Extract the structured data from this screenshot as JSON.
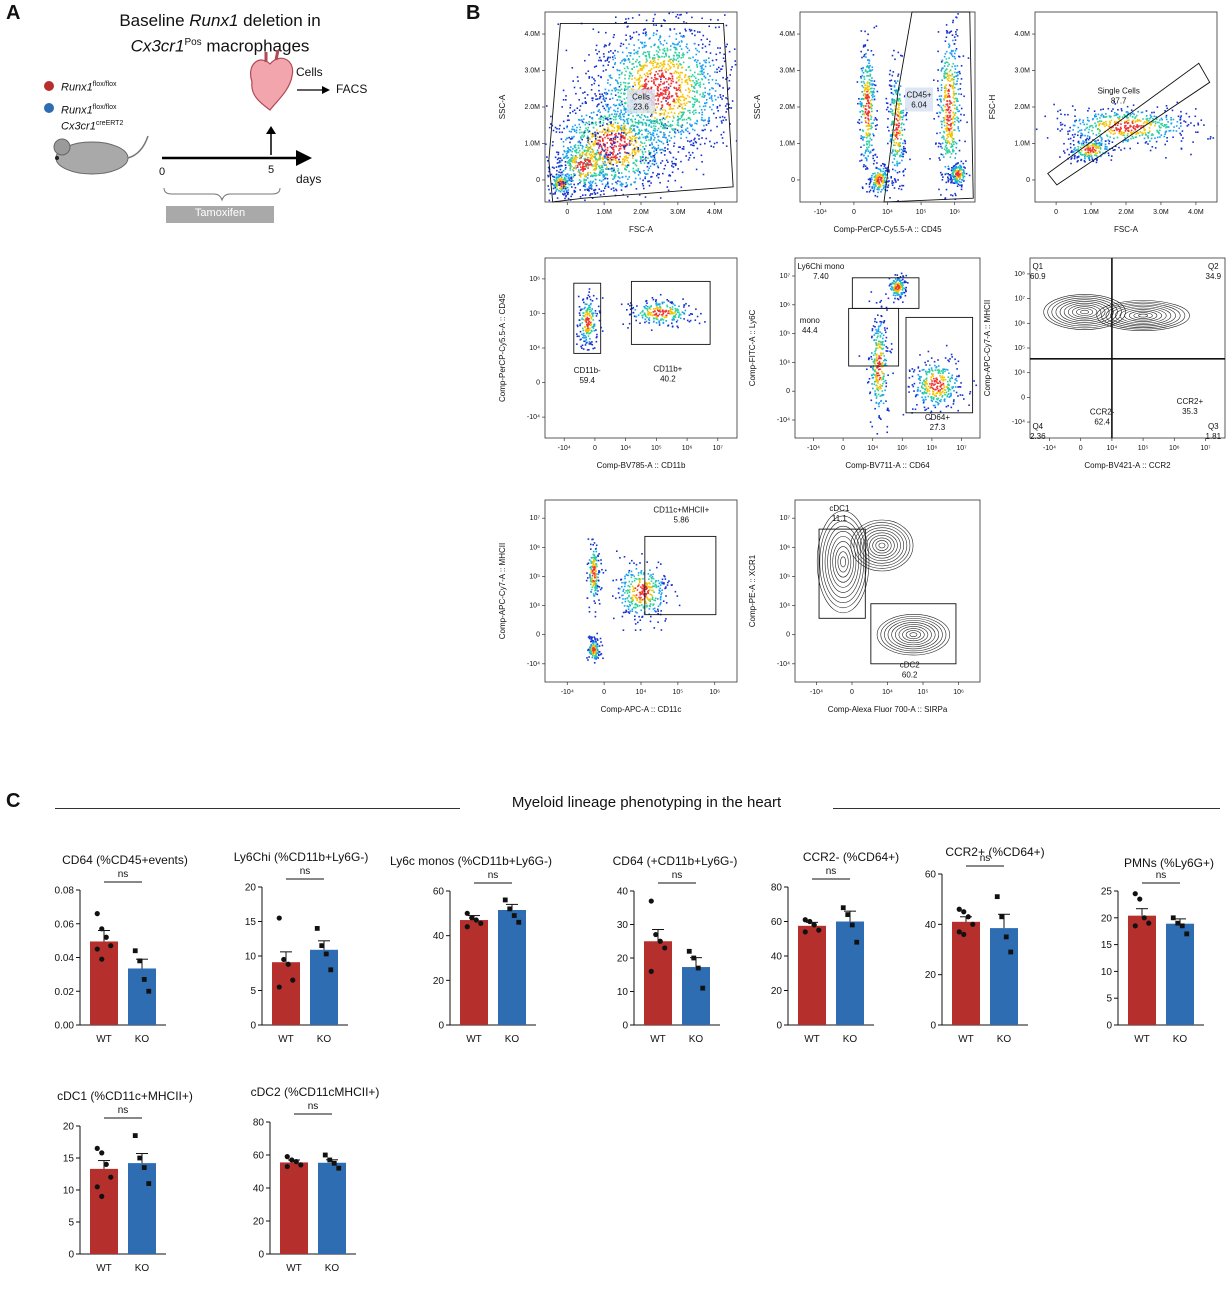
{
  "panels": {
    "a": "A",
    "b": "B",
    "c": "C"
  },
  "schematic": {
    "title_pre": "Baseline ",
    "title_gene": "Runx1",
    "title_post": " deletion in",
    "title2_gene": "Cx3cr1",
    "title2_sup": "Pos",
    "title2_post": " macrophages",
    "legend_red_gene": "Runx1",
    "legend_red_sup": "flox/flox",
    "legend_blue_gene": "Runx1",
    "legend_blue_sup": "flox/flox",
    "legend_blue_gene2": "Cx3cr1",
    "legend_blue_sup2": "creERT2",
    "cells": "Cells",
    "facs": "FACS",
    "t0": "0",
    "t5": "5",
    "days": "days",
    "tamoxifen": "Tamoxifen",
    "colors": {
      "red": "#b5302d",
      "blue": "#2f6db3",
      "grey": "#a9a9a9"
    }
  },
  "facs": [
    {
      "id": "p1",
      "type": "density",
      "ylabel": "SSC-A",
      "xlabel": "FSC-A",
      "xticks": [
        "0",
        "1.0M",
        "2.0M",
        "3.0M",
        "4.0M"
      ],
      "yticks": [
        "0",
        "1.0M",
        "2.0M",
        "3.0M",
        "4.0M"
      ],
      "gates": [
        {
          "name": "Cells",
          "value": "23.6"
        }
      ]
    },
    {
      "id": "p2",
      "type": "density",
      "ylabel": "SSC-A",
      "xlabel": "Comp-PerCP-Cy5.5-A :: CD45",
      "xticks": [
        "-10⁴",
        "0",
        "10⁴",
        "10⁵",
        "10⁶"
      ],
      "yticks": [
        "0",
        "1.0M",
        "2.0M",
        "3.0M",
        "4.0M"
      ],
      "gates": [
        {
          "name": "CD45+",
          "value": "6.04"
        }
      ]
    },
    {
      "id": "p3",
      "type": "density",
      "ylabel": "FSC-H",
      "xlabel": "FSC-A",
      "xticks": [
        "0",
        "1.0M",
        "2.0M",
        "3.0M",
        "4.0M"
      ],
      "yticks": [
        "0",
        "1.0M",
        "2.0M",
        "3.0M",
        "4.0M"
      ],
      "gates": [
        {
          "name": "Single Cells",
          "value": "87.7"
        }
      ]
    },
    {
      "id": "p4",
      "type": "density",
      "ylabel": "Comp-PerCP-Cy5.5-A :: CD45",
      "xlabel": "Comp-BV785-A :: CD11b",
      "xticks": [
        "-10⁴",
        "0",
        "10⁴",
        "10⁵",
        "10⁶",
        "10⁷"
      ],
      "yticks": [
        "-10⁴",
        "0",
        "10⁴",
        "10⁵",
        "10⁶"
      ],
      "gates": [
        {
          "name": "CD11b-",
          "value": "59.4"
        },
        {
          "name": "CD11b+",
          "value": "40.2"
        }
      ]
    },
    {
      "id": "p5",
      "type": "density",
      "ylabel": "Comp-FITC-A :: Ly6C",
      "xlabel": "Comp-BV711-A :: CD64",
      "xticks": [
        "-10⁴",
        "0",
        "10⁴",
        "10⁵",
        "10⁶",
        "10⁷"
      ],
      "yticks": [
        "-10⁴",
        "0",
        "10⁴",
        "10⁵",
        "10⁶",
        "10⁷"
      ],
      "gates": [
        {
          "name": "Ly6Chi mono",
          "value": "7.40"
        },
        {
          "name": "mono",
          "value": "44.4"
        },
        {
          "name": "CD64+",
          "value": "27.3"
        }
      ]
    },
    {
      "id": "p6",
      "type": "contour",
      "ylabel": "Comp-APC-Cy7-A :: MHCII",
      "xlabel": "Comp-BV421-A :: CCR2",
      "xticks": [
        "-10⁴",
        "0",
        "10⁴",
        "10⁵",
        "10⁶",
        "10⁷"
      ],
      "yticks": [
        "-10⁴",
        "0",
        "10⁴",
        "10⁵",
        "10⁶",
        "10⁷",
        "10⁸"
      ],
      "gates": [
        {
          "name": "Q1",
          "value": "60.9"
        },
        {
          "name": "Q2",
          "value": "34.9"
        },
        {
          "name": "Q3",
          "value": "1.81"
        },
        {
          "name": "Q4",
          "value": "2.36"
        },
        {
          "name": "CCR2-",
          "value": "62.4"
        },
        {
          "name": "CCR2+",
          "value": "35.3"
        }
      ]
    },
    {
      "id": "p7",
      "type": "density",
      "ylabel": "Comp-APC-Cy7-A :: MHCII",
      "xlabel": "Comp-APC-A :: CD11c",
      "xticks": [
        "-10⁴",
        "0",
        "10⁴",
        "10⁵",
        "10⁶"
      ],
      "yticks": [
        "-10⁴",
        "0",
        "10⁴",
        "10⁵",
        "10⁶",
        "10⁷"
      ],
      "gates": [
        {
          "name": "CD11c+MHCII+",
          "value": "5.86"
        }
      ]
    },
    {
      "id": "p8",
      "type": "contour",
      "ylabel": "Comp-PE-A :: XCR1",
      "xlabel": "Comp-Alexa Fluor 700-A :: SIRPa",
      "xticks": [
        "-10⁴",
        "0",
        "10⁴",
        "10⁵",
        "10⁶"
      ],
      "yticks": [
        "-10⁴",
        "0",
        "10⁴",
        "10⁵",
        "10⁶",
        "10⁷"
      ],
      "gates": [
        {
          "name": "cDC1",
          "value": "11.1"
        },
        {
          "name": "cDC2",
          "value": "60.2"
        }
      ]
    }
  ],
  "section_c_title": "Myeloid lineage phenotyping in the heart",
  "chart_data": [
    {
      "type": "bar",
      "title": "CD64 (%CD45+events)",
      "categories": [
        "WT",
        "KO"
      ],
      "values": [
        0.0495,
        0.0335
      ],
      "sem": [
        0.0065,
        0.0055
      ],
      "ylim": [
        0,
        0.08
      ],
      "yticks": [
        "0.00",
        "0.02",
        "0.04",
        "0.06",
        "0.08"
      ],
      "tickvals": [
        0,
        0.02,
        0.04,
        0.06,
        0.08
      ],
      "points": [
        [
          0.066,
          0.057,
          0.052,
          0.047,
          0.045,
          0.039
        ],
        [
          0.044,
          0.038,
          0.027,
          0.02
        ]
      ],
      "sig": "ns"
    },
    {
      "type": "bar",
      "title": "Ly6Chi (%CD11b+Ly6G-)",
      "categories": [
        "WT",
        "KO"
      ],
      "values": [
        9.1,
        10.9
      ],
      "sem": [
        1.5,
        1.3
      ],
      "ylim": [
        0,
        20
      ],
      "yticks": [
        "0",
        "5",
        "10",
        "15",
        "20"
      ],
      "tickvals": [
        0,
        5,
        10,
        15,
        20
      ],
      "points": [
        [
          15.5,
          9.5,
          8.8,
          6.5,
          5.5
        ],
        [
          14.0,
          11.5,
          10.3,
          8.0
        ]
      ],
      "sig": "ns"
    },
    {
      "type": "bar",
      "title": "Ly6c monos (%CD11b+Ly6G-)",
      "categories": [
        "WT",
        "KO"
      ],
      "values": [
        47,
        51.5
      ],
      "sem": [
        2,
        2.5
      ],
      "ylim": [
        0,
        60
      ],
      "yticks": [
        "0",
        "20",
        "40",
        "60"
      ],
      "tickvals": [
        0,
        20,
        40,
        60
      ],
      "points": [
        [
          50,
          48,
          47,
          45.5,
          44
        ],
        [
          56,
          52,
          49,
          46
        ]
      ],
      "sig": "ns"
    },
    {
      "type": "bar",
      "title": "CD64 (+CD11b+Ly6G-)",
      "categories": [
        "WT",
        "KO"
      ],
      "values": [
        25,
        17.3
      ],
      "sem": [
        3.5,
        2.8
      ],
      "ylim": [
        0,
        40
      ],
      "yticks": [
        "0",
        "10",
        "20",
        "30",
        "40"
      ],
      "tickvals": [
        0,
        10,
        20,
        30,
        40
      ],
      "points": [
        [
          37,
          27,
          25,
          23,
          16
        ],
        [
          22,
          20,
          17,
          11
        ]
      ],
      "sig": "ns"
    },
    {
      "type": "bar",
      "title": "CCR2- (%CD64+)",
      "categories": [
        "WT",
        "KO"
      ],
      "values": [
        57.5,
        60
      ],
      "sem": [
        2,
        6
      ],
      "ylim": [
        0,
        80
      ],
      "yticks": [
        "0",
        "20",
        "40",
        "60",
        "80"
      ],
      "tickvals": [
        0,
        20,
        40,
        60,
        80
      ],
      "points": [
        [
          61,
          60,
          58,
          55,
          54
        ],
        [
          68,
          64,
          58,
          48
        ]
      ],
      "sig": "ns"
    },
    {
      "type": "bar",
      "title": "CCR2+ (%CD64+)",
      "categories": [
        "WT",
        "KO"
      ],
      "values": [
        41,
        38.5
      ],
      "sem": [
        2,
        5.5
      ],
      "ylim": [
        0,
        60
      ],
      "yticks": [
        "0",
        "20",
        "40",
        "60"
      ],
      "tickvals": [
        0,
        20,
        40,
        60
      ],
      "points": [
        [
          46,
          45,
          43,
          40,
          37,
          36
        ],
        [
          51,
          43,
          35,
          29
        ]
      ],
      "sig": "ns"
    },
    {
      "type": "bar",
      "title": "PMNs (%Ly6G+)",
      "categories": [
        "WT",
        "KO"
      ],
      "values": [
        20.4,
        18.9
      ],
      "sem": [
        1.3,
        0.9
      ],
      "ylim": [
        0,
        25
      ],
      "yticks": [
        "0",
        "5",
        "10",
        "15",
        "20",
        "25"
      ],
      "tickvals": [
        0,
        5,
        10,
        15,
        20,
        25
      ],
      "points": [
        [
          24.5,
          23.5,
          20,
          19,
          18.5
        ],
        [
          20,
          19,
          18.5,
          17
        ]
      ],
      "sig": "ns"
    },
    {
      "type": "bar",
      "title": "cDC1 (%CD11c+MHCII+)",
      "categories": [
        "WT",
        "KO"
      ],
      "values": [
        13.3,
        14.2
      ],
      "sem": [
        1.3,
        1.5
      ],
      "ylim": [
        0,
        20
      ],
      "yticks": [
        "0",
        "5",
        "10",
        "15",
        "20"
      ],
      "tickvals": [
        0,
        5,
        10,
        15,
        20
      ],
      "points": [
        [
          16.5,
          15.8,
          14,
          12,
          10.5,
          9
        ],
        [
          18.5,
          15,
          13.5,
          11
        ]
      ],
      "sig": "ns"
    },
    {
      "type": "bar",
      "title": "cDC2 (%CD11cMHCII+)",
      "categories": [
        "WT",
        "KO"
      ],
      "values": [
        55.5,
        55.3
      ],
      "sem": [
        1.5,
        1.8
      ],
      "ylim": [
        0,
        80
      ],
      "yticks": [
        "0",
        "20",
        "40",
        "60",
        "80"
      ],
      "tickvals": [
        0,
        20,
        40,
        60,
        80
      ],
      "points": [
        [
          59,
          57,
          56,
          54,
          53
        ],
        [
          60,
          57,
          55,
          52
        ]
      ],
      "sig": "ns"
    }
  ]
}
